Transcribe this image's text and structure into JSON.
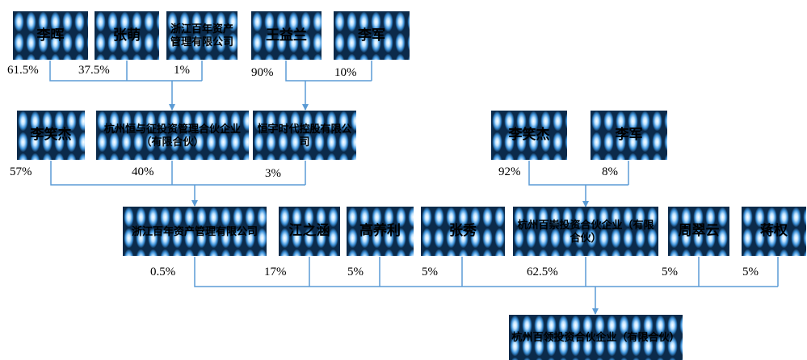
{
  "nodes": {
    "li_hui": "李晖",
    "zhang_meng": "张萌",
    "zhejiang_baixian_mgmt": "浙江百年资产管理有限公司",
    "wang_yilan": "王益兰",
    "li_jun_top": "李军",
    "li_xiaojie_left": "李笑杰",
    "hangzhou_hengyu": "杭州恒与征投资管理合伙企业（有限合伙）",
    "hengyu_shidai": "恒宇时代控股有限公司",
    "li_xiaojie_right": "李笑杰",
    "li_jun_right": "李军",
    "zhejiang_bainian": "浙江百年资产管理有限公司",
    "jiang_zhihan": "江之涵",
    "gao_yangli": "高养利",
    "zhang_xiu": "张秀",
    "hangzhou_baichong": "杭州百崇投资合伙企业（有限合伙）",
    "zhou_cuiyun": "周翠云",
    "jiang_quan": "蒋权",
    "target": "杭州百领投资合伙企业（有限合伙）"
  },
  "percentages": {
    "li_hui": "61.5%",
    "zhang_meng": "37.5%",
    "zhejiang_baixian_mgmt": "1%",
    "wang_yilan": "90%",
    "li_jun_top": "10%",
    "li_xiaojie_left": "57%",
    "hangzhou_hengyu": "40%",
    "hengyu_shidai": "3%",
    "li_xiaojie_right": "92%",
    "li_jun_right": "8%",
    "zhejiang_bainian": "0.5%",
    "jiang_zhihan": "17%",
    "gao_yangli": "5%",
    "zhang_xiu": "5%",
    "hangzhou_baichong": "62.5%",
    "zhou_cuiyun": "5%",
    "jiang_quan": "5%"
  },
  "colors": {
    "connector": "#5b9bd5",
    "box_dark": "#0b2a4a",
    "box_light": "#3b8fd6"
  }
}
